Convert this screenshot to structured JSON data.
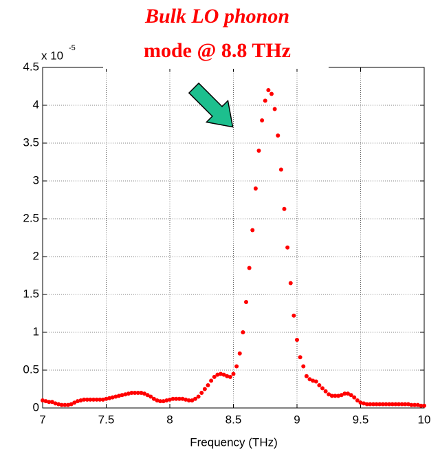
{
  "chart_data": {
    "type": "scatter",
    "annotation_line1": "Bulk LO phonon",
    "annotation_line2": "mode @ 8.8 THz",
    "y_scale_base": "x 10",
    "y_scale_exponent": "-5",
    "x_label": "Frequency (THz)",
    "color": "#ff0000",
    "x": [
      7.0,
      7.025,
      7.05,
      7.075,
      7.1,
      7.125,
      7.15,
      7.175,
      7.2,
      7.225,
      7.25,
      7.275,
      7.3,
      7.325,
      7.35,
      7.375,
      7.4,
      7.425,
      7.45,
      7.475,
      7.5,
      7.525,
      7.55,
      7.575,
      7.6,
      7.625,
      7.65,
      7.675,
      7.7,
      7.725,
      7.75,
      7.775,
      7.8,
      7.825,
      7.85,
      7.875,
      7.9,
      7.925,
      7.95,
      7.975,
      8.0,
      8.025,
      8.05,
      8.075,
      8.1,
      8.125,
      8.15,
      8.175,
      8.2,
      8.225,
      8.25,
      8.275,
      8.3,
      8.325,
      8.35,
      8.375,
      8.4,
      8.425,
      8.45,
      8.475,
      8.5,
      8.525,
      8.55,
      8.575,
      8.6,
      8.625,
      8.65,
      8.675,
      8.7,
      8.725,
      8.75,
      8.775,
      8.8,
      8.825,
      8.85,
      8.875,
      8.9,
      8.925,
      8.95,
      8.975,
      9.0,
      9.025,
      9.05,
      9.075,
      9.1,
      9.125,
      9.15,
      9.175,
      9.2,
      9.225,
      9.25,
      9.275,
      9.3,
      9.325,
      9.35,
      9.375,
      9.4,
      9.425,
      9.45,
      9.475,
      9.5,
      9.525,
      9.55,
      9.575,
      9.6,
      9.625,
      9.65,
      9.675,
      9.7,
      9.725,
      9.75,
      9.775,
      9.8,
      9.825,
      9.85,
      9.875,
      9.9,
      9.925,
      9.95,
      9.975,
      10.0
    ],
    "values": [
      0.1,
      0.09,
      0.08,
      0.08,
      0.06,
      0.05,
      0.04,
      0.04,
      0.04,
      0.05,
      0.07,
      0.09,
      0.1,
      0.11,
      0.11,
      0.11,
      0.11,
      0.11,
      0.11,
      0.11,
      0.12,
      0.13,
      0.14,
      0.15,
      0.16,
      0.17,
      0.18,
      0.19,
      0.2,
      0.2,
      0.2,
      0.2,
      0.19,
      0.17,
      0.15,
      0.12,
      0.1,
      0.09,
      0.09,
      0.1,
      0.11,
      0.12,
      0.12,
      0.12,
      0.12,
      0.11,
      0.1,
      0.1,
      0.12,
      0.15,
      0.2,
      0.25,
      0.3,
      0.36,
      0.41,
      0.44,
      0.45,
      0.44,
      0.42,
      0.41,
      0.45,
      0.55,
      0.72,
      1.0,
      1.4,
      1.85,
      2.35,
      2.9,
      3.4,
      3.8,
      4.06,
      4.2,
      4.15,
      3.95,
      3.6,
      3.15,
      2.63,
      2.12,
      1.65,
      1.22,
      0.9,
      0.67,
      0.55,
      0.42,
      0.38,
      0.36,
      0.35,
      0.3,
      0.26,
      0.22,
      0.18,
      0.16,
      0.16,
      0.16,
      0.17,
      0.19,
      0.19,
      0.17,
      0.14,
      0.1,
      0.07,
      0.06,
      0.05,
      0.05,
      0.05,
      0.05,
      0.05,
      0.05,
      0.05,
      0.05,
      0.05,
      0.05,
      0.05,
      0.05,
      0.05,
      0.05,
      0.04,
      0.04,
      0.04,
      0.03,
      0.03
    ],
    "xlim": [
      7,
      10
    ],
    "xticks": [
      7,
      7.5,
      8,
      8.5,
      9,
      9.5,
      10
    ],
    "ylim": [
      0,
      4.5
    ],
    "yticks": [
      0,
      0.5,
      1,
      1.5,
      2,
      2.5,
      3,
      3.5,
      4,
      4.5
    ],
    "grid": true
  }
}
